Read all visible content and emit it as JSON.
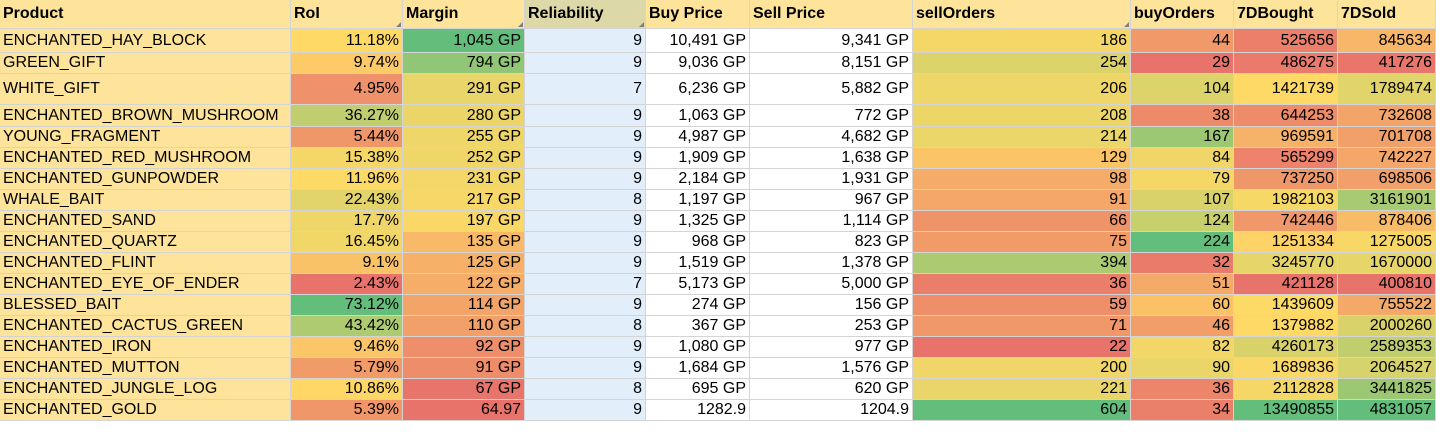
{
  "colors": {
    "header_bg": "#fde49a",
    "product_bg": "#fde49a",
    "reliability_bg": "#e3eefb",
    "reliability_header_bg": "#ddd8a8",
    "price_bg": "#ffffff",
    "scale_green": "#63be7b",
    "scale_yellow": "#ffd966",
    "scale_red": "#e8736b"
  },
  "table": {
    "columns": [
      {
        "key": "product",
        "label": "Product"
      },
      {
        "key": "roi",
        "label": "RoI"
      },
      {
        "key": "margin",
        "label": "Margin"
      },
      {
        "key": "reliability",
        "label": "Reliability"
      },
      {
        "key": "buy_price",
        "label": "Buy Price"
      },
      {
        "key": "sell_price",
        "label": "Sell Price"
      },
      {
        "key": "sell_orders",
        "label": "sellOrders"
      },
      {
        "key": "buy_orders",
        "label": "buyOrders"
      },
      {
        "key": "bought_7d",
        "label": "7DBought"
      },
      {
        "key": "sold_7d",
        "label": "7DSold"
      }
    ],
    "rows": [
      [
        "ENCHANTED_HAY_BLOCK",
        "11.18%",
        "1,045 GP",
        "9",
        "10,491 GP",
        "9,341 GP",
        "186",
        "44",
        "525656",
        "845634"
      ],
      [
        "GREEN_GIFT",
        "9.74%",
        "794 GP",
        "9",
        "9,036 GP",
        "8,151 GP",
        "254",
        "29",
        "486275",
        "417276"
      ],
      [
        "WHITE_GIFT",
        "4.95%",
        "291 GP",
        "7",
        "6,236 GP",
        "5,882 GP",
        "206",
        "104",
        "1421739",
        "1789474"
      ],
      [
        "ENCHANTED_BROWN_MUSHROOM",
        "36.27%",
        "280 GP",
        "9",
        "1,063 GP",
        "772 GP",
        "208",
        "38",
        "644253",
        "732608"
      ],
      [
        "YOUNG_FRAGMENT",
        "5.44%",
        "255 GP",
        "9",
        "4,987 GP",
        "4,682 GP",
        "214",
        "167",
        "969591",
        "701708"
      ],
      [
        "ENCHANTED_RED_MUSHROOM",
        "15.38%",
        "252 GP",
        "9",
        "1,909 GP",
        "1,638 GP",
        "129",
        "84",
        "565299",
        "742227"
      ],
      [
        "ENCHANTED_GUNPOWDER",
        "11.96%",
        "231 GP",
        "9",
        "2,184 GP",
        "1,931 GP",
        "98",
        "79",
        "737250",
        "698506"
      ],
      [
        "WHALE_BAIT",
        "22.43%",
        "217 GP",
        "8",
        "1,197 GP",
        "967 GP",
        "91",
        "107",
        "1982103",
        "3161901"
      ],
      [
        "ENCHANTED_SAND",
        "17.7%",
        "197 GP",
        "9",
        "1,325 GP",
        "1,114 GP",
        "66",
        "124",
        "742446",
        "878406"
      ],
      [
        "ENCHANTED_QUARTZ",
        "16.45%",
        "135 GP",
        "9",
        "968 GP",
        "823 GP",
        "75",
        "224",
        "1251334",
        "1275005"
      ],
      [
        "ENCHANTED_FLINT",
        "9.1%",
        "125 GP",
        "9",
        "1,519 GP",
        "1,378 GP",
        "394",
        "32",
        "3245770",
        "1670000"
      ],
      [
        "ENCHANTED_EYE_OF_ENDER",
        "2.43%",
        "122 GP",
        "7",
        "5,173 GP",
        "5,000 GP",
        "36",
        "51",
        "421128",
        "400810"
      ],
      [
        "BLESSED_BAIT",
        "73.12%",
        "114 GP",
        "9",
        "274 GP",
        "156 GP",
        "59",
        "60",
        "1439609",
        "755522"
      ],
      [
        "ENCHANTED_CACTUS_GREEN",
        "43.42%",
        "110 GP",
        "8",
        "367 GP",
        "253 GP",
        "71",
        "46",
        "1379882",
        "2000260"
      ],
      [
        "ENCHANTED_IRON",
        "9.46%",
        "92 GP",
        "9",
        "1,080 GP",
        "977 GP",
        "22",
        "82",
        "4260173",
        "2589353"
      ],
      [
        "ENCHANTED_MUTTON",
        "5.79%",
        "91 GP",
        "9",
        "1,684 GP",
        "1,576 GP",
        "200",
        "90",
        "1689836",
        "2064527"
      ],
      [
        "ENCHANTED_JUNGLE_LOG",
        "10.86%",
        "67 GP",
        "8",
        "695 GP",
        "620 GP",
        "221",
        "36",
        "2112828",
        "3441825"
      ],
      [
        "ENCHANTED_GOLD",
        "5.39%",
        "64.97",
        "9",
        "1282.9",
        "1204.9",
        "604",
        "34",
        "13490855",
        "4831057"
      ]
    ]
  }
}
